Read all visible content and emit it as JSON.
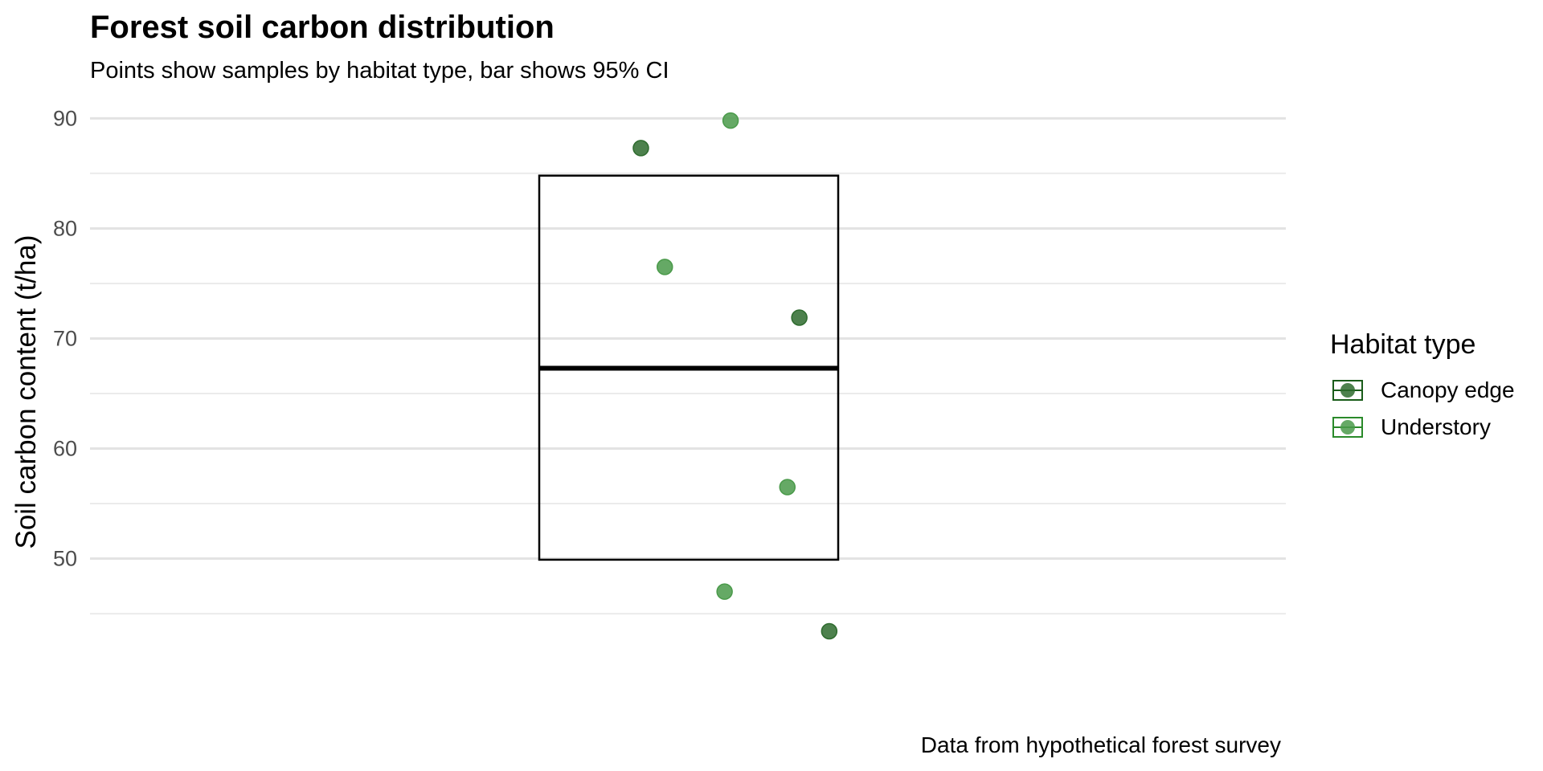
{
  "chart_data": {
    "type": "scatter",
    "title": "Forest soil carbon distribution",
    "subtitle": "Points show samples by habitat type, bar shows 95% CI",
    "caption": "Data from hypothetical forest survey",
    "xlabel": "",
    "ylabel": "Soil carbon content (t/ha)",
    "ylim": [
      38,
      92
    ],
    "y_ticks": [
      50,
      60,
      70,
      80,
      90
    ],
    "grid": true,
    "legend_title": "Habitat type",
    "legend_position": "right",
    "summary_box": {
      "mean": 67.3,
      "ci_low": 49.9,
      "ci_high": 84.8
    },
    "series": [
      {
        "name": "Canopy edge",
        "color": "#2e6b2e",
        "points": [
          {
            "jitter": -0.16,
            "y": 87.3
          },
          {
            "jitter": 0.37,
            "y": 71.9
          },
          {
            "jitter": 0.47,
            "y": 43.4
          }
        ]
      },
      {
        "name": "Understory",
        "color": "#4a9a4a",
        "points": [
          {
            "jitter": 0.14,
            "y": 89.8
          },
          {
            "jitter": -0.08,
            "y": 76.5
          },
          {
            "jitter": 0.33,
            "y": 56.5
          },
          {
            "jitter": 0.12,
            "y": 47.0
          }
        ]
      }
    ]
  }
}
